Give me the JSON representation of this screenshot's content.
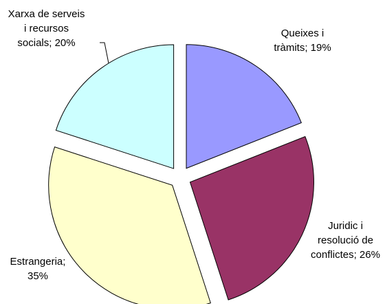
{
  "chart_data": {
    "type": "pie",
    "categories": [
      "Queixes i tràmits",
      "Juridic i resolució de conflictes",
      "Estrangeria",
      "Xarxa de serveis i recursos socials"
    ],
    "values": [
      19,
      26,
      35,
      20
    ],
    "value_labels": [
      "; 19%",
      "; 26%",
      "; 35%",
      "; 20%"
    ],
    "colors": [
      "#9999ff",
      "#993366",
      "#ffffcc",
      "#ccffff"
    ]
  }
}
